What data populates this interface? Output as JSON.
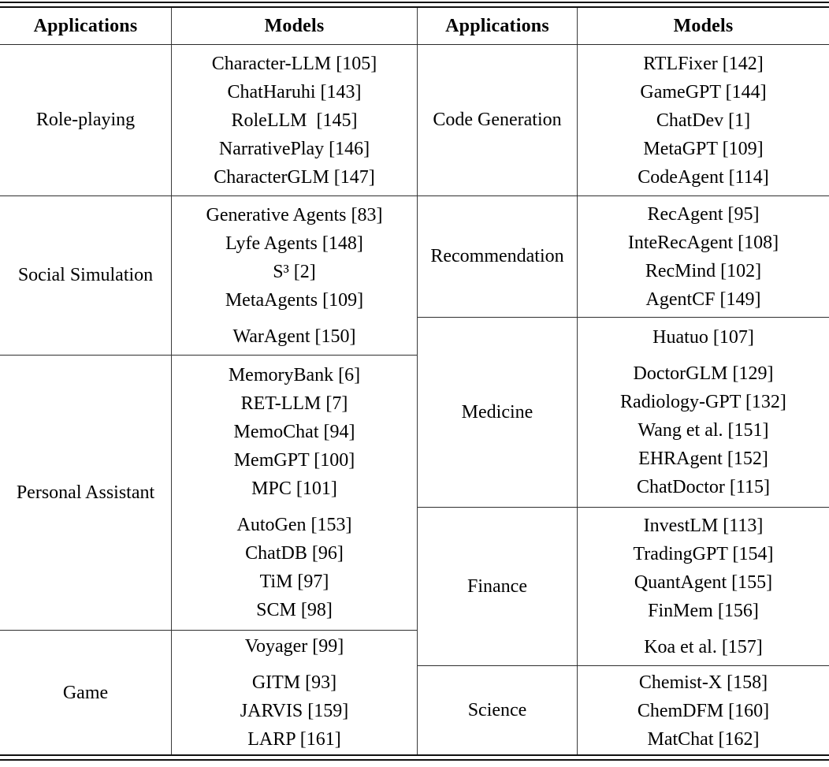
{
  "table": {
    "columns": [
      "Applications",
      "Models",
      "Applications",
      "Models"
    ],
    "left_sections": [
      {
        "application": "Role-playing",
        "models": [
          "Character-LLM [105]",
          "ChatHaruhi [143]",
          "RoleLLM  [145]",
          "NarrativePlay [146]",
          "CharacterGLM [147]"
        ],
        "group_breaks": []
      },
      {
        "application": "Social Simulation",
        "models": [
          "Generative Agents [83]",
          "Lyfe Agents [148]",
          "S³ [2]",
          "MetaAgents [109]",
          "WarAgent [150]"
        ],
        "group_breaks": [
          4
        ]
      },
      {
        "application": "Personal Assistant",
        "models": [
          "MemoryBank [6]",
          "RET-LLM [7]",
          "MemoChat [94]",
          "MemGPT [100]",
          "MPC [101]",
          "AutoGen [153]",
          "ChatDB [96]",
          "TiM [97]",
          "SCM [98]"
        ],
        "group_breaks": [
          5
        ]
      },
      {
        "application": "Game",
        "models": [
          "Voyager [99]",
          "GITM [93]",
          "JARVIS [159]",
          "LARP [161]"
        ],
        "group_breaks": [
          1
        ]
      }
    ],
    "right_sections": [
      {
        "application": "Code Generation",
        "models": [
          "RTLFixer [142]",
          "GameGPT [144]",
          "ChatDev [1]",
          "MetaGPT [109]",
          "CodeAgent [114]"
        ],
        "group_breaks": []
      },
      {
        "application": "Recommendation",
        "models": [
          "RecAgent [95]",
          "InteRecAgent [108]",
          "RecMind [102]",
          "AgentCF [149]"
        ],
        "group_breaks": []
      },
      {
        "application": "Medicine",
        "models": [
          "Huatuo [107]",
          "DoctorGLM [129]",
          "Radiology-GPT [132]",
          "Wang et al. [151]",
          "EHRAgent [152]",
          "ChatDoctor [115]"
        ],
        "group_breaks": [
          1
        ]
      },
      {
        "application": "Finance",
        "models": [
          "InvestLM [113]",
          "TradingGPT [154]",
          "QuantAgent [155]",
          "FinMem [156]",
          "Koa et al. [157]"
        ],
        "group_breaks": [
          4
        ]
      },
      {
        "application": "Science",
        "models": [
          "Chemist-X [158]",
          "ChemDFM [160]",
          "MatChat [162]"
        ],
        "group_breaks": []
      }
    ]
  },
  "colors": {
    "rule": "#111111",
    "inner_line": "#3a3a3a",
    "text": "#000000",
    "background": "#ffffff"
  }
}
